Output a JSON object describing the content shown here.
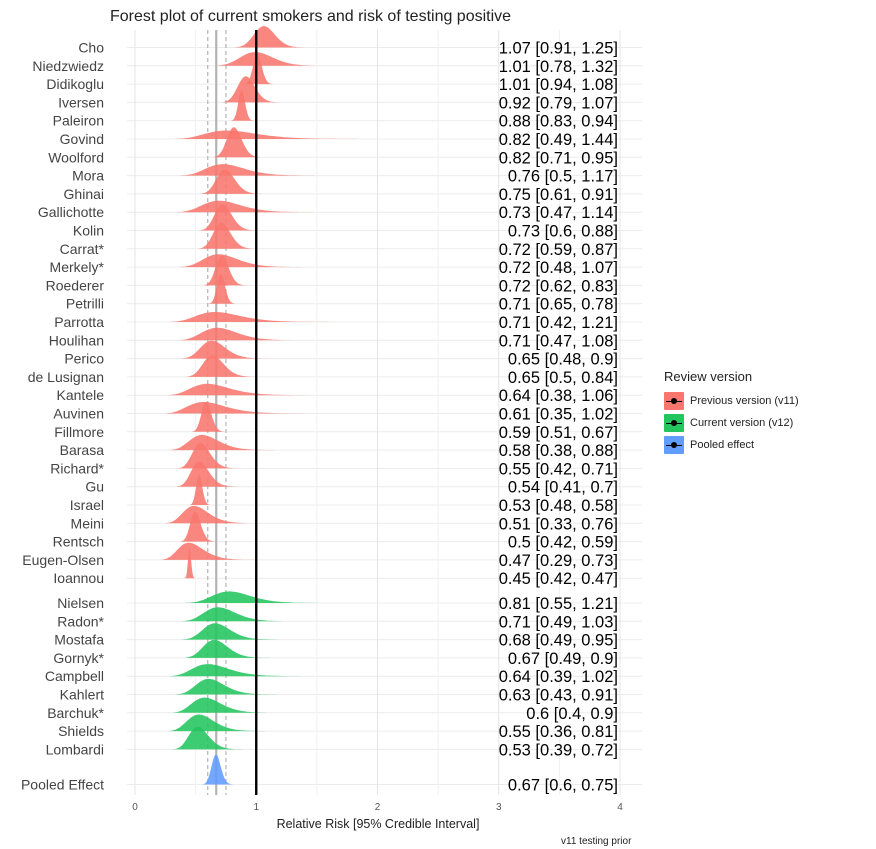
{
  "title": "Forest plot of current smokers and risk of testing positive",
  "caption": "v11 testing prior",
  "chart_data": {
    "type": "forest",
    "title": "Forest plot of current smokers and risk of testing positive",
    "xlabel": "Relative Risk [95% Credible Interval]",
    "ylabel": "",
    "xlim": [
      0,
      4
    ],
    "xticks": [
      0,
      1,
      2,
      3,
      4
    ],
    "grid": true,
    "null_line": 1,
    "pooled_line": 0.67,
    "pooled_interval_lines": [
      0.6,
      0.75
    ],
    "legend": {
      "title": "Review version",
      "placement": "right",
      "entries": [
        {
          "key": "v11",
          "label": "Previous version (v11)",
          "color": "#F8766D"
        },
        {
          "key": "v12",
          "label": "Current version (v12)",
          "color": "#22C55E"
        },
        {
          "key": "pooled",
          "label": "Pooled effect",
          "color": "#619CFF"
        }
      ]
    },
    "series": [
      {
        "name": "Previous version (v11)",
        "key": "v11",
        "color": "#F8766D",
        "studies": [
          {
            "label": "Cho",
            "est": 1.07,
            "lo": 0.91,
            "hi": 1.25,
            "text": "1.07 [0.91, 1.25]"
          },
          {
            "label": "Niedzwiedz",
            "est": 1.01,
            "lo": 0.78,
            "hi": 1.32,
            "text": "1.01 [0.78, 1.32]"
          },
          {
            "label": "Didikoglu",
            "est": 1.01,
            "lo": 0.94,
            "hi": 1.08,
            "text": "1.01 [0.94, 1.08]"
          },
          {
            "label": "Iversen",
            "est": 0.92,
            "lo": 0.79,
            "hi": 1.07,
            "text": "0.92 [0.79, 1.07]"
          },
          {
            "label": "Paleiron",
            "est": 0.88,
            "lo": 0.83,
            "hi": 0.94,
            "text": "0.88 [0.83, 0.94]"
          },
          {
            "label": "Govind",
            "est": 0.82,
            "lo": 0.49,
            "hi": 1.44,
            "text": "0.82 [0.49, 1.44]"
          },
          {
            "label": "Woolford",
            "est": 0.82,
            "lo": 0.71,
            "hi": 0.95,
            "text": "0.82 [0.71, 0.95]"
          },
          {
            "label": "Mora",
            "est": 0.76,
            "lo": 0.5,
            "hi": 1.17,
            "text": "0.76 [0.5, 1.17]"
          },
          {
            "label": "Ghinai",
            "est": 0.75,
            "lo": 0.61,
            "hi": 0.91,
            "text": "0.75 [0.61, 0.91]"
          },
          {
            "label": "Gallichotte",
            "est": 0.73,
            "lo": 0.47,
            "hi": 1.14,
            "text": "0.73 [0.47, 1.14]"
          },
          {
            "label": "Kolin",
            "est": 0.73,
            "lo": 0.6,
            "hi": 0.88,
            "text": "0.73 [0.6, 0.88]"
          },
          {
            "label": "Carrat*",
            "est": 0.72,
            "lo": 0.59,
            "hi": 0.87,
            "text": "0.72 [0.59, 0.87]"
          },
          {
            "label": "Merkely*",
            "est": 0.72,
            "lo": 0.48,
            "hi": 1.07,
            "text": "0.72 [0.48, 1.07]"
          },
          {
            "label": "Roederer",
            "est": 0.72,
            "lo": 0.62,
            "hi": 0.83,
            "text": "0.72 [0.62, 0.83]"
          },
          {
            "label": "Petrilli",
            "est": 0.71,
            "lo": 0.65,
            "hi": 0.78,
            "text": "0.71 [0.65, 0.78]"
          },
          {
            "label": "Parrotta",
            "est": 0.71,
            "lo": 0.42,
            "hi": 1.21,
            "text": "0.71 [0.42, 1.21]"
          },
          {
            "label": "Houlihan",
            "est": 0.71,
            "lo": 0.47,
            "hi": 1.08,
            "text": "0.71 [0.47, 1.08]"
          },
          {
            "label": "Perico",
            "est": 0.65,
            "lo": 0.48,
            "hi": 0.9,
            "text": "0.65 [0.48, 0.9]"
          },
          {
            "label": "de Lusignan",
            "est": 0.65,
            "lo": 0.5,
            "hi": 0.84,
            "text": "0.65 [0.5, 0.84]"
          },
          {
            "label": "Kantele",
            "est": 0.64,
            "lo": 0.38,
            "hi": 1.06,
            "text": "0.64 [0.38, 1.06]"
          },
          {
            "label": "Auvinen",
            "est": 0.61,
            "lo": 0.35,
            "hi": 1.02,
            "text": "0.61 [0.35, 1.02]"
          },
          {
            "label": "Fillmore",
            "est": 0.59,
            "lo": 0.51,
            "hi": 0.67,
            "text": "0.59 [0.51, 0.67]"
          },
          {
            "label": "Barasa",
            "est": 0.58,
            "lo": 0.38,
            "hi": 0.88,
            "text": "0.58 [0.38, 0.88]"
          },
          {
            "label": "Richard*",
            "est": 0.55,
            "lo": 0.42,
            "hi": 0.71,
            "text": "0.55 [0.42, 0.71]"
          },
          {
            "label": "Gu",
            "est": 0.54,
            "lo": 0.41,
            "hi": 0.7,
            "text": "0.54 [0.41, 0.7]"
          },
          {
            "label": "Israel",
            "est": 0.53,
            "lo": 0.48,
            "hi": 0.58,
            "text": "0.53 [0.48, 0.58]"
          },
          {
            "label": "Meini",
            "est": 0.51,
            "lo": 0.33,
            "hi": 0.76,
            "text": "0.51 [0.33, 0.76]"
          },
          {
            "label": "Rentsch",
            "est": 0.5,
            "lo": 0.42,
            "hi": 0.59,
            "text": "0.5 [0.42, 0.59]"
          },
          {
            "label": "Eugen-Olsen",
            "est": 0.47,
            "lo": 0.29,
            "hi": 0.73,
            "text": "0.47 [0.29, 0.73]"
          },
          {
            "label": "Ioannou",
            "est": 0.45,
            "lo": 0.42,
            "hi": 0.47,
            "text": "0.45 [0.42, 0.47]"
          }
        ]
      },
      {
        "name": "Current version (v12)",
        "key": "v12",
        "color": "#22C55E",
        "studies": [
          {
            "label": "Nielsen",
            "est": 0.81,
            "lo": 0.55,
            "hi": 1.21,
            "text": "0.81 [0.55, 1.21]"
          },
          {
            "label": "Radon*",
            "est": 0.71,
            "lo": 0.49,
            "hi": 1.03,
            "text": "0.71 [0.49, 1.03]"
          },
          {
            "label": "Mostafa",
            "est": 0.68,
            "lo": 0.49,
            "hi": 0.95,
            "text": "0.68 [0.49, 0.95]"
          },
          {
            "label": "Gornyk*",
            "est": 0.67,
            "lo": 0.49,
            "hi": 0.9,
            "text": "0.67 [0.49, 0.9]"
          },
          {
            "label": "Campbell",
            "est": 0.64,
            "lo": 0.39,
            "hi": 1.02,
            "text": "0.64 [0.39, 1.02]"
          },
          {
            "label": "Kahlert",
            "est": 0.63,
            "lo": 0.43,
            "hi": 0.91,
            "text": "0.63 [0.43, 0.91]"
          },
          {
            "label": "Barchuk*",
            "est": 0.6,
            "lo": 0.4,
            "hi": 0.9,
            "text": "0.6 [0.4, 0.9]"
          },
          {
            "label": "Shields",
            "est": 0.55,
            "lo": 0.36,
            "hi": 0.81,
            "text": "0.55 [0.36, 0.81]"
          },
          {
            "label": "Lombardi",
            "est": 0.53,
            "lo": 0.39,
            "hi": 0.72,
            "text": "0.53 [0.39, 0.72]"
          }
        ]
      },
      {
        "name": "Pooled effect",
        "key": "pooled",
        "color": "#619CFF",
        "studies": [
          {
            "label": "Pooled Effect",
            "est": 0.67,
            "lo": 0.6,
            "hi": 0.75,
            "text": "0.67 [0.6, 0.75]"
          }
        ]
      }
    ]
  }
}
